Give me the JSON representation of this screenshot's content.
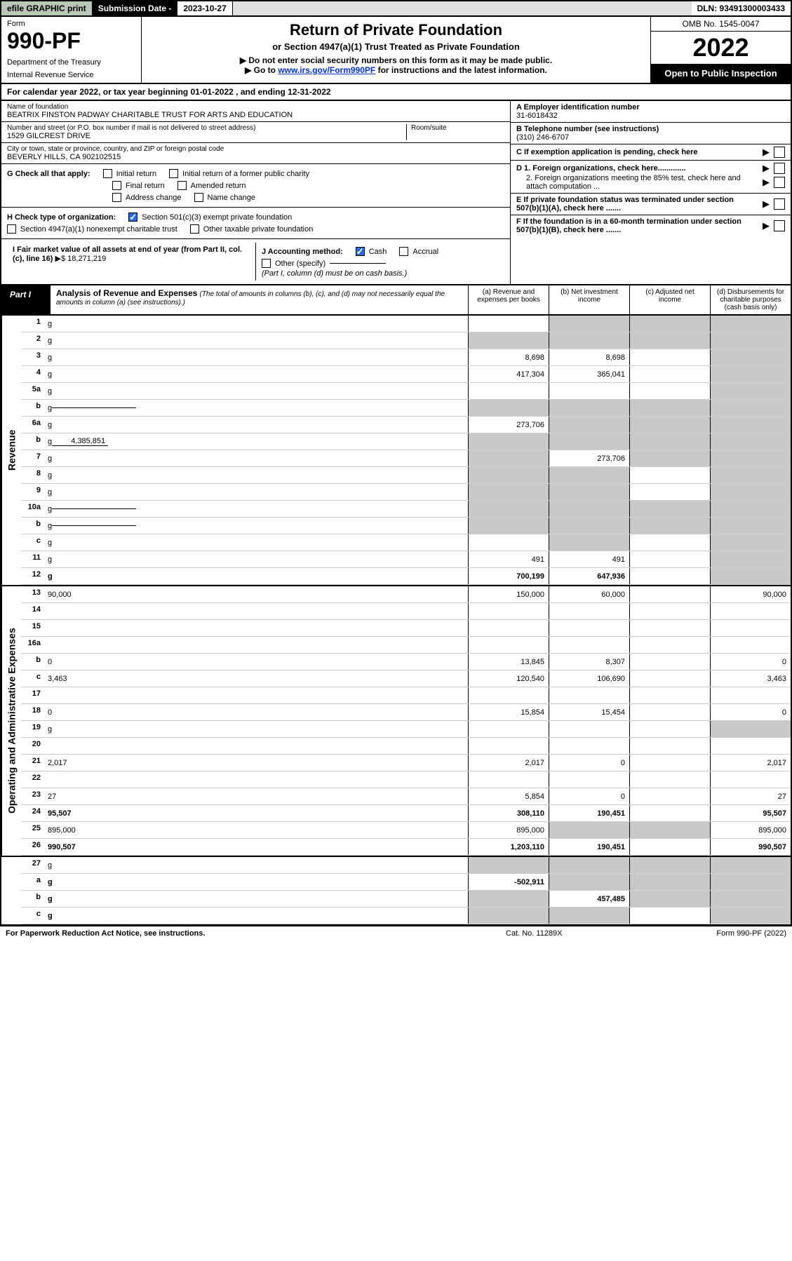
{
  "topbar": {
    "efile": "efile GRAPHIC print",
    "sub_label": "Submission Date -",
    "sub_date": "2023-10-27",
    "dln": "DLN: 93491300003433"
  },
  "header": {
    "form_label": "Form",
    "form_number": "990-PF",
    "dept1": "Department of the Treasury",
    "dept2": "Internal Revenue Service",
    "title": "Return of Private Foundation",
    "subtitle1": "or Section 4947(a)(1) Trust Treated as Private Foundation",
    "subtitle2": "▶ Do not enter social security numbers on this form as it may be made public.",
    "subtitle3_pre": "▶ Go to ",
    "subtitle3_link": "www.irs.gov/Form990PF",
    "subtitle3_post": " for instructions and the latest information.",
    "omb": "OMB No. 1545-0047",
    "year": "2022",
    "open": "Open to Public Inspection"
  },
  "calyear": "For calendar year 2022, or tax year beginning 01-01-2022                         , and ending 12-31-2022",
  "info": {
    "name_label": "Name of foundation",
    "name": "BEATRIX FINSTON PADWAY CHARITABLE TRUST FOR ARTS AND EDUCATION",
    "addr_label": "Number and street (or P.O. box number if mail is not delivered to street address)",
    "addr": "1529 GILCREST DRIVE",
    "room_label": "Room/suite",
    "city_label": "City or town, state or province, country, and ZIP or foreign postal code",
    "city": "BEVERLY HILLS, CA  902102515",
    "a_label": "A Employer identification number",
    "a_val": "31-6018432",
    "b_label": "B Telephone number (see instructions)",
    "b_val": "(310) 246-6707",
    "c_label": "C If exemption application is pending, check here",
    "d1": "D 1. Foreign organizations, check here.............",
    "d2": "2. Foreign organizations meeting the 85% test, check here and attach computation ...",
    "e": "E  If private foundation status was terminated under section 507(b)(1)(A), check here .......",
    "f": "F  If the foundation is in a 60-month termination under section 507(b)(1)(B), check here .......",
    "g_label": "G Check all that apply:",
    "g_opts": [
      "Initial return",
      "Initial return of a former public charity",
      "Final return",
      "Amended return",
      "Address change",
      "Name change"
    ],
    "h_label": "H Check type of organization:",
    "h1": "Section 501(c)(3) exempt private foundation",
    "h2": "Section 4947(a)(1) nonexempt charitable trust",
    "h3": "Other taxable private foundation",
    "i_label": "I Fair market value of all assets at end of year (from Part II, col. (c), line 16)",
    "i_val": "18,271,219",
    "j_label": "J Accounting method:",
    "j1": "Cash",
    "j2": "Accrual",
    "j3": "Other (specify)",
    "j_note": "(Part I, column (d) must be on cash basis.)"
  },
  "part1": {
    "label": "Part I",
    "title": "Analysis of Revenue and Expenses",
    "note": "(The total of amounts in columns (b), (c), and (d) may not necessarily equal the amounts in column (a) (see instructions).)",
    "col_a": "(a)    Revenue and expenses per books",
    "col_b": "(b)    Net investment income",
    "col_c": "(c)   Adjusted net income",
    "col_d": "(d)   Disbursements for charitable purposes (cash basis only)"
  },
  "sidelabels": {
    "rev": "Revenue",
    "exp": "Operating and Administrative Expenses"
  },
  "rows": [
    {
      "n": "1",
      "d": "g",
      "a": "",
      "b": "g",
      "c": "g"
    },
    {
      "n": "2",
      "d": "g",
      "a": "g",
      "b": "g",
      "c": "g"
    },
    {
      "n": "3",
      "d": "g",
      "a": "8,698",
      "b": "8,698",
      "c": ""
    },
    {
      "n": "4",
      "d": "g",
      "a": "417,304",
      "b": "365,041",
      "c": ""
    },
    {
      "n": "5a",
      "d": "g",
      "a": "",
      "b": "",
      "c": ""
    },
    {
      "n": "b",
      "d": "g",
      "a": "g",
      "b": "g",
      "c": "g",
      "blank": true
    },
    {
      "n": "6a",
      "d": "g",
      "a": "273,706",
      "b": "g",
      "c": "g"
    },
    {
      "n": "b",
      "d": "g",
      "a": "g",
      "b": "g",
      "c": "g",
      "inline": "4,385,851"
    },
    {
      "n": "7",
      "d": "g",
      "a": "g",
      "b": "273,706",
      "c": "g"
    },
    {
      "n": "8",
      "d": "g",
      "a": "g",
      "b": "g",
      "c": ""
    },
    {
      "n": "9",
      "d": "g",
      "a": "g",
      "b": "g",
      "c": ""
    },
    {
      "n": "10a",
      "d": "g",
      "a": "g",
      "b": "g",
      "c": "g",
      "blank": true
    },
    {
      "n": "b",
      "d": "g",
      "a": "g",
      "b": "g",
      "c": "g",
      "blank": true
    },
    {
      "n": "c",
      "d": "g",
      "a": "",
      "b": "g",
      "c": ""
    },
    {
      "n": "11",
      "d": "g",
      "a": "491",
      "b": "491",
      "c": ""
    },
    {
      "n": "12",
      "d": "g",
      "a": "700,199",
      "b": "647,936",
      "c": "",
      "bold": true
    }
  ],
  "exp_rows": [
    {
      "n": "13",
      "d": "90,000",
      "a": "150,000",
      "b": "60,000",
      "c": ""
    },
    {
      "n": "14",
      "d": "",
      "a": "",
      "b": "",
      "c": ""
    },
    {
      "n": "15",
      "d": "",
      "a": "",
      "b": "",
      "c": ""
    },
    {
      "n": "16a",
      "d": "",
      "a": "",
      "b": "",
      "c": ""
    },
    {
      "n": "b",
      "d": "0",
      "a": "13,845",
      "b": "8,307",
      "c": ""
    },
    {
      "n": "c",
      "d": "3,463",
      "a": "120,540",
      "b": "106,690",
      "c": ""
    },
    {
      "n": "17",
      "d": "",
      "a": "",
      "b": "",
      "c": ""
    },
    {
      "n": "18",
      "d": "0",
      "a": "15,854",
      "b": "15,454",
      "c": ""
    },
    {
      "n": "19",
      "d": "g",
      "a": "",
      "b": "",
      "c": ""
    },
    {
      "n": "20",
      "d": "",
      "a": "",
      "b": "",
      "c": ""
    },
    {
      "n": "21",
      "d": "2,017",
      "a": "2,017",
      "b": "0",
      "c": ""
    },
    {
      "n": "22",
      "d": "",
      "a": "",
      "b": "",
      "c": ""
    },
    {
      "n": "23",
      "d": "27",
      "a": "5,854",
      "b": "0",
      "c": ""
    },
    {
      "n": "24",
      "d": "95,507",
      "a": "308,110",
      "b": "190,451",
      "c": "",
      "bold": true
    },
    {
      "n": "25",
      "d": "895,000",
      "a": "895,000",
      "b": "g",
      "c": "g"
    },
    {
      "n": "26",
      "d": "990,507",
      "a": "1,203,110",
      "b": "190,451",
      "c": "",
      "bold": true
    }
  ],
  "bottom_rows": [
    {
      "n": "27",
      "d": "g",
      "a": "g",
      "b": "g",
      "c": "g"
    },
    {
      "n": "a",
      "d": "g",
      "a": "-502,911",
      "b": "g",
      "c": "g",
      "bold": true
    },
    {
      "n": "b",
      "d": "g",
      "a": "g",
      "b": "457,485",
      "c": "g",
      "bold": true
    },
    {
      "n": "c",
      "d": "g",
      "a": "g",
      "b": "g",
      "c": "",
      "bold": true
    }
  ],
  "footer": {
    "left": "For Paperwork Reduction Act Notice, see instructions.",
    "mid": "Cat. No. 11289X",
    "right": "Form 990-PF (2022)"
  },
  "colors": {
    "grey": "#c8c8c8",
    "link": "#0033cc",
    "check": "#2a6adf"
  }
}
